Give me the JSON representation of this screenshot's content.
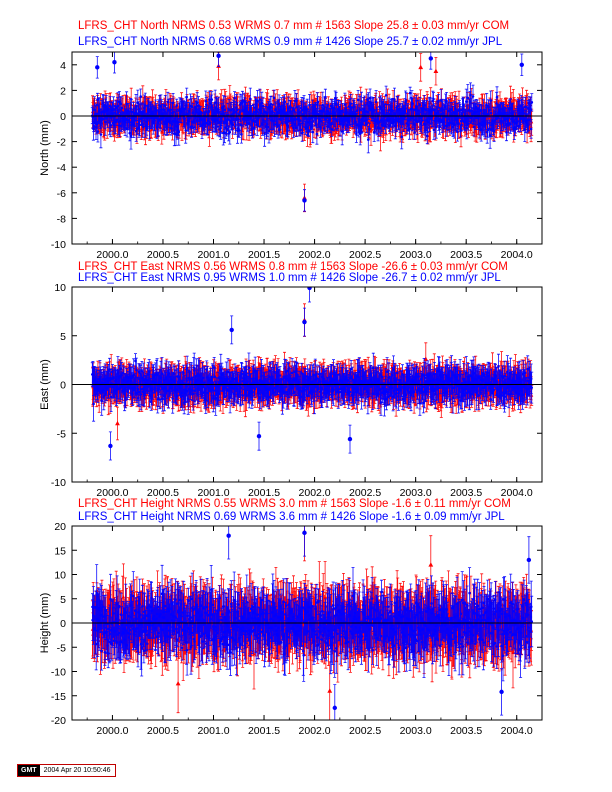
{
  "figure": {
    "stamp_logo": "GMT",
    "stamp_text": "2004 Apr 20 10:50:46"
  },
  "colors": {
    "jpl": "#0000ff",
    "com": "#ff0000",
    "zero_line": "#000000",
    "axis": "#000000"
  },
  "chart_data": [
    {
      "type": "scatter",
      "title_lines": [
        "LFRS_CHT North NRMS 0.68 WRMS  0.9 mm # 1426 Slope   25.7 ±  0.02 mm/yr JPL",
        "LFRS_CHT North NRMS 0.53 WRMS  0.7 mm # 1563 Slope   25.8 ±  0.03 mm/yr COM"
      ],
      "xlabel": "",
      "ylabel": "North (mm)",
      "xlim": [
        1999.6,
        2004.25
      ],
      "ylim": [
        -10,
        5
      ],
      "xticks": [
        2000.0,
        2000.5,
        2001.0,
        2001.5,
        2002.0,
        2002.5,
        2003.0,
        2003.5,
        2004.0
      ],
      "xtick_labels": [
        "2000.0",
        "2000.5",
        "2001.0",
        "2001.5",
        "2002.0",
        "2002.5",
        "2003.0",
        "2003.5",
        "2004.0"
      ],
      "yticks": [
        -10,
        -8,
        -6,
        -4,
        -2,
        0,
        2,
        4
      ],
      "ytick_labels": [
        "-10",
        "-8",
        "-6",
        "-4",
        "-2",
        "0",
        "2",
        "4"
      ],
      "zero_line": 0,
      "series": [
        {
          "name": "JPL",
          "color": "#0000ff",
          "marker": "circle",
          "count": 1426,
          "x_range": [
            1999.8,
            2004.15
          ],
          "scatter_sd": 0.9,
          "error_bar": 0.7,
          "notable_points": [
            [
              1999.85,
              3.8
            ],
            [
              2000.02,
              4.2
            ],
            [
              2001.05,
              4.7
            ],
            [
              2001.9,
              -6.6
            ],
            [
              2003.15,
              4.5
            ],
            [
              2004.05,
              4.0
            ]
          ]
        },
        {
          "name": "COM",
          "color": "#ff0000",
          "marker": "triangle",
          "count": 1563,
          "x_range": [
            1999.8,
            2004.15
          ],
          "scatter_sd": 0.7,
          "error_bar": 0.9,
          "notable_points": [
            [
              2001.05,
              3.9
            ],
            [
              2001.9,
              -6.4
            ],
            [
              2003.05,
              3.8
            ],
            [
              2003.2,
              3.5
            ]
          ]
        }
      ]
    },
    {
      "type": "scatter",
      "title_lines": [
        "LFRS_CHT East NRMS 0.95 WRMS  1.0 mm # 1426 Slope  -26.7 ±  0.02 mm/yr JPL",
        "LFRS_CHT East NRMS 0.56 WRMS  0.8 mm # 1563 Slope  -26.6 ±  0.03 mm/yr COM"
      ],
      "xlabel": "",
      "ylabel": "East (mm)",
      "xlim": [
        1999.6,
        2004.25
      ],
      "ylim": [
        -10,
        10
      ],
      "xticks": [
        2000.0,
        2000.5,
        2001.0,
        2001.5,
        2002.0,
        2002.5,
        2003.0,
        2003.5,
        2004.0
      ],
      "xtick_labels": [
        "2000.0",
        "2000.5",
        "2001.0",
        "2001.5",
        "2002.0",
        "2002.5",
        "2003.0",
        "2003.5",
        "2004.0"
      ],
      "yticks": [
        -10,
        -5,
        0,
        5,
        10
      ],
      "ytick_labels": [
        "-10",
        "-5",
        "0",
        "5",
        "10"
      ],
      "zero_line": 0,
      "series": [
        {
          "name": "JPL",
          "color": "#0000ff",
          "marker": "circle",
          "count": 1426,
          "x_range": [
            1999.8,
            2004.15
          ],
          "scatter_sd": 1.0,
          "error_bar": 1.2,
          "notable_points": [
            [
              1999.98,
              -6.3
            ],
            [
              2001.18,
              5.6
            ],
            [
              2001.9,
              6.4
            ],
            [
              2001.95,
              9.9
            ],
            [
              2002.35,
              -5.6
            ],
            [
              2001.45,
              -5.3
            ]
          ]
        },
        {
          "name": "COM",
          "color": "#ff0000",
          "marker": "triangle",
          "count": 1563,
          "x_range": [
            1999.8,
            2004.15
          ],
          "scatter_sd": 0.8,
          "error_bar": 1.4,
          "notable_points": [
            [
              2000.05,
              -4.0
            ],
            [
              2001.9,
              6.6
            ],
            [
              2003.1,
              2.6
            ]
          ]
        }
      ]
    },
    {
      "type": "scatter",
      "title_lines": [
        "LFRS_CHT Height NRMS 0.69 WRMS  3.6 mm # 1426 Slope   -1.6 ±  0.09 mm/yr JPL",
        "LFRS_CHT Height NRMS 0.55 WRMS  3.0 mm # 1563 Slope   -1.6 ±  0.11 mm/yr COM"
      ],
      "xlabel": "",
      "ylabel": "Height (mm)",
      "xlim": [
        1999.6,
        2004.25
      ],
      "ylim": [
        -20,
        20
      ],
      "xticks": [
        2000.0,
        2000.5,
        2001.0,
        2001.5,
        2002.0,
        2002.5,
        2003.0,
        2003.5,
        2004.0
      ],
      "xtick_labels": [
        "2000.0",
        "2000.5",
        "2001.0",
        "2001.5",
        "2002.0",
        "2002.5",
        "2003.0",
        "2003.5",
        "2004.0"
      ],
      "yticks": [
        -20,
        -15,
        -10,
        -5,
        0,
        5,
        10,
        15,
        20
      ],
      "ytick_labels": [
        "-20",
        "-15",
        "-10",
        "-5",
        "0",
        "5",
        "10",
        "15",
        "20"
      ],
      "zero_line": 0,
      "series": [
        {
          "name": "JPL",
          "color": "#0000ff",
          "marker": "circle",
          "count": 1426,
          "x_range": [
            1999.8,
            2004.15
          ],
          "scatter_sd": 3.6,
          "error_bar": 4.0,
          "notable_points": [
            [
              2001.15,
              18.0
            ],
            [
              2001.9,
              18.6
            ],
            [
              2002.2,
              -17.5
            ],
            [
              2003.85,
              -14.2
            ],
            [
              2004.12,
              13.0
            ]
          ]
        },
        {
          "name": "COM",
          "color": "#ff0000",
          "marker": "triangle",
          "count": 1563,
          "x_range": [
            1999.8,
            2004.15
          ],
          "scatter_sd": 3.0,
          "error_bar": 5.0,
          "notable_points": [
            [
              2001.9,
              18.8
            ],
            [
              2002.15,
              -14.0
            ],
            [
              2003.15,
              12.0
            ],
            [
              2000.65,
              -12.5
            ]
          ]
        }
      ]
    }
  ]
}
